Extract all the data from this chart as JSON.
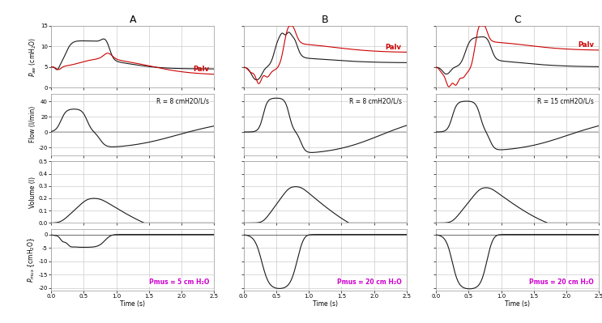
{
  "col_titles": [
    "A",
    "B",
    "C"
  ],
  "time_max": 2.5,
  "paw_ylim": [
    0,
    15
  ],
  "flow_ylim": [
    -30,
    50
  ],
  "volume_ylim": [
    0,
    0.5
  ],
  "pmus_ylim": [
    -21,
    2
  ],
  "paw_yticks": [
    0,
    5,
    10,
    15
  ],
  "flow_yticks": [
    -20,
    0,
    20,
    40
  ],
  "volume_yticks": [
    0.0,
    0.1,
    0.2,
    0.3,
    0.4,
    0.5
  ],
  "pmus_yticks": [
    -20,
    -15,
    -10,
    -5,
    0
  ],
  "xticks": [
    0.0,
    0.5,
    1.0,
    1.5,
    2.0,
    2.5
  ],
  "R_labels": [
    "R = 8 cmH2O/L/s",
    "R = 8 cmH2O/L/s",
    "R = 15 cmH2O/L/s"
  ],
  "pmus_labels": [
    "Pmus = 5 cm H₂O",
    "Pmus = 20 cm H₂O",
    "Pmus = 20 cm H₂O"
  ],
  "palv_label": "Palv",
  "background_color": "#ffffff",
  "line_color": "#1a1a1a",
  "palv_color": "#cc0000",
  "pmus_label_color": "#cc00cc",
  "grid_color": "#cccccc",
  "ylabel_paw": "P_aw (cmH2O)",
  "ylabel_flow": "Flow (l/min)",
  "ylabel_volume": "Volume (l)",
  "ylabel_pmus": "P_mus {cmH2O}",
  "xlabel": "Time (s)"
}
